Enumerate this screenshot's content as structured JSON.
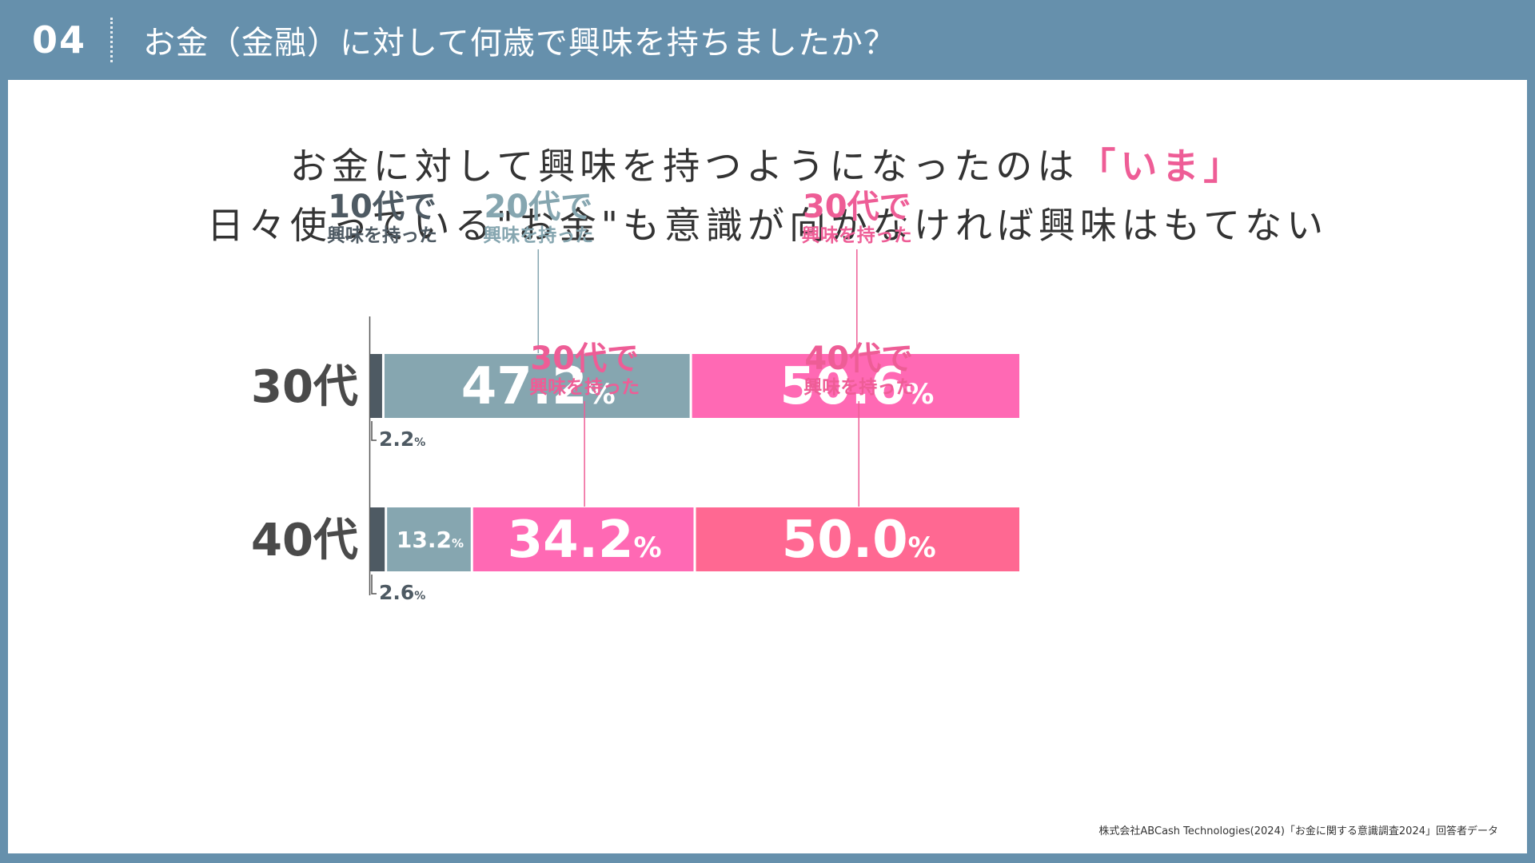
{
  "header": {
    "slide_number": "04",
    "title": "お金（金融）に対して何歳で興味を持ちましたか？"
  },
  "headline": {
    "line1_main": "お金に対して興味を持つようになったのは",
    "line1_accent": "「いま」",
    "line2": "日々使っている\"お金\"も意識が向かなければ興味はもてない"
  },
  "source": "株式会社ABCash Technologies(2024)「お金に関する意識調査2024」回答者データ",
  "chart_data": {
    "type": "bar",
    "orientation": "horizontal-stacked-100",
    "categories": [
      "30代",
      "40代"
    ],
    "rows": [
      {
        "category": "30代",
        "segments": [
          {
            "label_top": "10代で",
            "label_bottom": "興味を持った",
            "value": 2.2,
            "value_text": "2.2",
            "color": "#4e5a63"
          },
          {
            "label_top": "20代で",
            "label_bottom": "興味を持った",
            "value": 47.2,
            "value_text": "47.2",
            "color": "#86a6b0"
          },
          {
            "label_top": "30代で",
            "label_bottom": "興味を持った",
            "value": 50.6,
            "value_text": "50.6",
            "color": "#ff69b4"
          }
        ]
      },
      {
        "category": "40代",
        "segments": [
          {
            "label_top": "10代で",
            "label_bottom": "興味を持った",
            "value": 2.6,
            "value_text": "2.6",
            "color": "#4e5a63"
          },
          {
            "label_top": "20代で",
            "label_bottom": "興味を持った",
            "value": 13.2,
            "value_text": "13.2",
            "color": "#86a6b0"
          },
          {
            "label_top": "30代で",
            "label_bottom": "興味を持った",
            "value": 34.2,
            "value_text": "34.2",
            "color": "#ff69b4"
          },
          {
            "label_top": "40代で",
            "label_bottom": "興味を持った",
            "value": 50.0,
            "value_text": "50.0",
            "color": "#ff6892"
          }
        ]
      }
    ],
    "percent_sign": "%",
    "colors": {
      "teens": "#4e5a63",
      "twenties": "#86a6b0",
      "thirties": "#ff69b4",
      "forties": "#ff6892",
      "label_dark": "#4e5a63",
      "label_grey": "#86a6b0",
      "label_pink": "#ee5d96"
    }
  }
}
